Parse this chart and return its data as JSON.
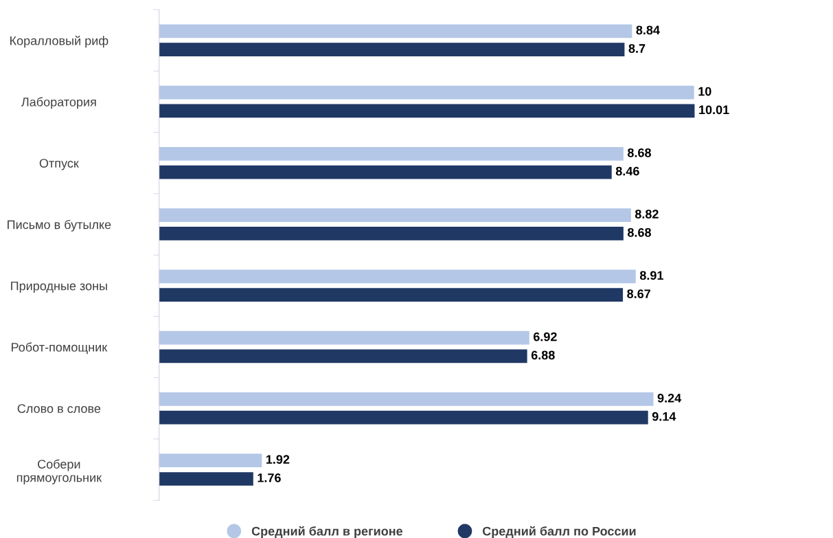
{
  "chart_data": {
    "type": "bar",
    "orientation": "horizontal",
    "categories": [
      "Коралловый риф",
      "Лаборатория",
      "Отпуск",
      "Письмо в бутылке",
      "Природные зоны",
      "Робот-помощник",
      "Слово в слове",
      "Собери\nпрямоугольник"
    ],
    "series": [
      {
        "name": "Средний балл в регионе",
        "color": "#b4c7e7",
        "values": [
          8.84,
          10,
          8.68,
          8.82,
          8.91,
          6.92,
          9.24,
          1.92
        ]
      },
      {
        "name": "Средний балл по России",
        "color": "#203864",
        "values": [
          8.7,
          10.01,
          8.46,
          8.68,
          8.67,
          6.88,
          9.14,
          1.76
        ]
      }
    ],
    "data_labels": true,
    "legend": "bottom",
    "grid": false,
    "marker": "circle"
  }
}
